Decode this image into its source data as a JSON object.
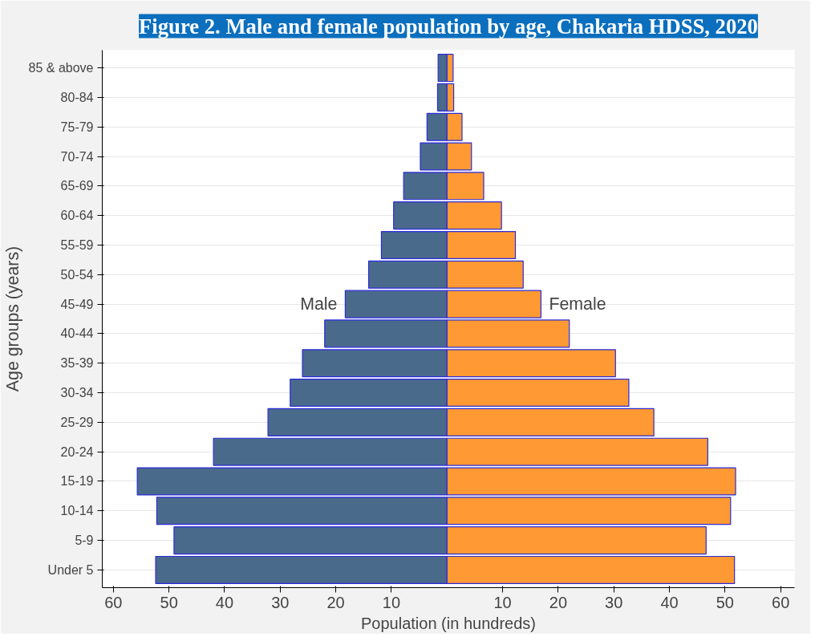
{
  "chart_data": {
    "type": "bar",
    "orientation": "horizontal",
    "title": "Figure 2. Male and female population by age, Chakaria HDSS, 2020",
    "xlabel": "Population (in hundreds)",
    "ylabel": "Age groups (years)",
    "categories": [
      "85 & above",
      "80-84",
      "75-79",
      "70-74",
      "65-69",
      "60-64",
      "55-59",
      "50-54",
      "45-49",
      "40-44",
      "35-39",
      "30-34",
      "25-29",
      "20-24",
      "15-19",
      "10-14",
      "5-9",
      "Under 5"
    ],
    "series": [
      {
        "name": "Male",
        "color": "#4a6a8c",
        "values": [
          -1.6,
          -1.7,
          -3.6,
          -4.8,
          -7.8,
          -9.6,
          -11.8,
          -14.1,
          -18.3,
          -22.0,
          -26.0,
          -28.2,
          -32.2,
          -42.0,
          -55.7,
          -52.2,
          -49.1,
          -52.4
        ]
      },
      {
        "name": "Female",
        "color": "#ff9933",
        "values": [
          1.1,
          1.2,
          2.7,
          4.4,
          6.6,
          9.8,
          12.3,
          13.7,
          16.9,
          22.0,
          30.3,
          32.7,
          37.2,
          46.9,
          51.9,
          51.0,
          46.6,
          51.7
        ]
      }
    ],
    "xlim": [
      -62,
      62.5
    ],
    "xticks": [
      {
        "value": -60,
        "label": "60"
      },
      {
        "value": -50,
        "label": "50"
      },
      {
        "value": -40,
        "label": "40"
      },
      {
        "value": -30,
        "label": "30"
      },
      {
        "value": -20,
        "label": "20"
      },
      {
        "value": -10,
        "label": "10"
      },
      10,
      20,
      30,
      40,
      50,
      60
    ],
    "grid": "y",
    "stacked": true
  }
}
